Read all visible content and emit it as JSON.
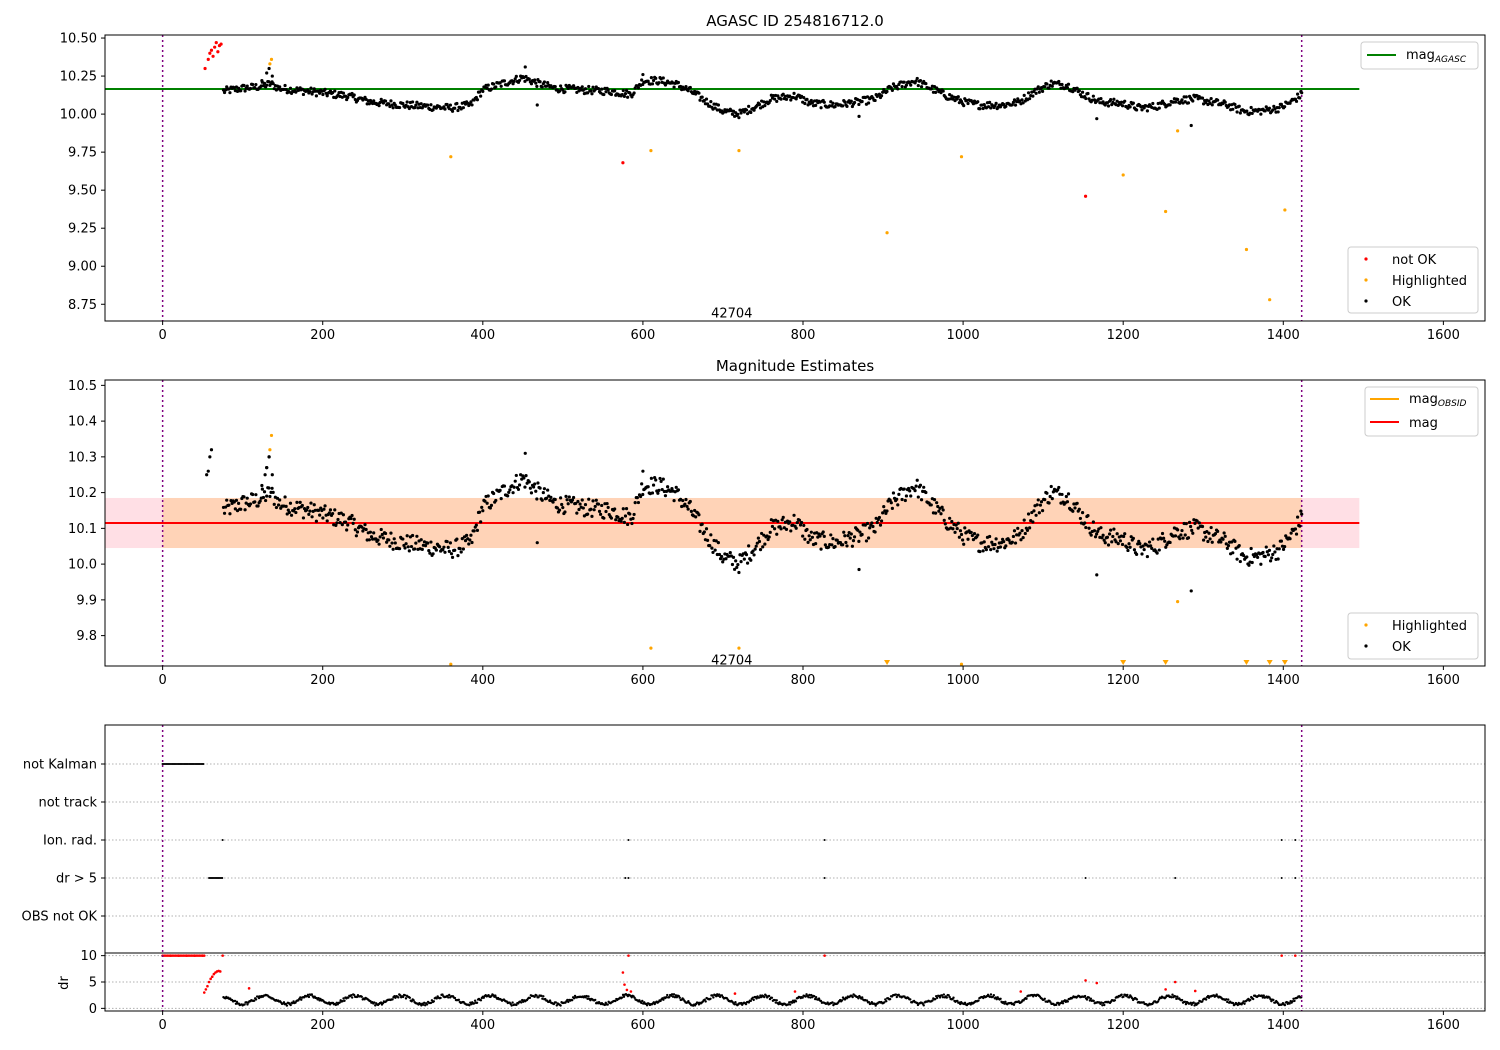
{
  "chart_data": [
    {
      "type": "scatter",
      "title": "AGASC ID 254816712.0",
      "xlabel": "",
      "ylabel": "",
      "xlim": [
        -72,
        1652
      ],
      "ylim": [
        8.64,
        10.52
      ],
      "xticks": [
        "0",
        "200",
        "400",
        "600",
        "800",
        "1000",
        "1200",
        "1400",
        "1600"
      ],
      "xtick_values": [
        0,
        200,
        400,
        600,
        800,
        1000,
        1200,
        1400,
        1600
      ],
      "yticks": [
        "8.75",
        "9.00",
        "9.25",
        "9.50",
        "9.75",
        "10.00",
        "10.25",
        "10.50"
      ],
      "ytick_values": [
        8.75,
        9.0,
        9.25,
        9.5,
        9.75,
        10.0,
        10.25,
        10.5
      ],
      "reference_line": {
        "name": "mag$_{AGASC}$",
        "label_main": "mag",
        "label_sub": "AGASC",
        "value": 10.165,
        "x_range": [
          -72,
          1495
        ],
        "color": "#008000"
      },
      "vlines": [
        0,
        1423
      ],
      "vline_color": "#800080",
      "obsid_label": {
        "text": "42704",
        "x": 711,
        "y": 8.69
      },
      "series": [
        {
          "name": "not OK",
          "color": "#ff0000",
          "points": [
            [
              53,
              10.3
            ],
            [
              57,
              10.36
            ],
            [
              59,
              10.4
            ],
            [
              61,
              10.42
            ],
            [
              63,
              10.38
            ],
            [
              65,
              10.44
            ],
            [
              67,
              10.47
            ],
            [
              69,
              10.41
            ],
            [
              71,
              10.45
            ],
            [
              73,
              10.46
            ],
            [
              575,
              9.68
            ],
            [
              1153,
              9.46
            ]
          ]
        },
        {
          "name": "Highlighted",
          "color": "#ffa500",
          "points": [
            [
              134,
              10.33
            ],
            [
              136,
              10.36
            ],
            [
              360,
              9.72
            ],
            [
              610,
              9.76
            ],
            [
              720,
              9.76
            ],
            [
              905,
              9.22
            ],
            [
              998,
              9.72
            ],
            [
              1200,
              9.6
            ],
            [
              1253,
              9.36
            ],
            [
              1268,
              9.89
            ],
            [
              1354,
              9.11
            ],
            [
              1383,
              8.78
            ],
            [
              1402,
              9.37
            ]
          ]
        },
        {
          "name": "OK",
          "color": "#000000",
          "trend": "mag_trend"
        }
      ],
      "legend": [
        "not OK",
        "Highlighted",
        "OK"
      ],
      "legend_position": "lower-right",
      "line_legend_position": "upper-right"
    },
    {
      "type": "scatter",
      "title": "Magnitude Estimates",
      "xlim": [
        -72,
        1652
      ],
      "ylim": [
        9.715,
        10.515
      ],
      "xticks": [
        "0",
        "200",
        "400",
        "600",
        "800",
        "1000",
        "1200",
        "1400",
        "1600"
      ],
      "xtick_values": [
        0,
        200,
        400,
        600,
        800,
        1000,
        1200,
        1400,
        1600
      ],
      "yticks": [
        "9.8",
        "9.9",
        "10.0",
        "10.1",
        "10.2",
        "10.3",
        "10.4",
        "10.5"
      ],
      "ytick_values": [
        9.8,
        9.9,
        10.0,
        10.1,
        10.2,
        10.3,
        10.4,
        10.5
      ],
      "mag_line": {
        "name": "mag",
        "value": 10.115,
        "band": [
          10.045,
          10.185
        ],
        "x_range": [
          -72,
          1495
        ],
        "color": "#ff0000",
        "band_color": "#ffc0cb"
      },
      "obsid_line": {
        "name": "mag$_{OBSID}$",
        "label_main": "mag",
        "label_sub": "OBSID",
        "value": 10.115,
        "band": [
          10.045,
          10.185
        ],
        "x_range": [
          0,
          1423
        ],
        "color": "#ffa500"
      },
      "vlines": [
        0,
        1423
      ],
      "obsid_label": {
        "text": "42704",
        "x": 711,
        "y": 9.73
      },
      "highlighted_points": [
        [
          134,
          10.32
        ],
        [
          136,
          10.36
        ],
        [
          360,
          9.72
        ],
        [
          610,
          9.765
        ],
        [
          720,
          9.765
        ],
        [
          998,
          9.72
        ],
        [
          1268,
          9.895
        ]
      ],
      "clipped_down_markers": [
        905,
        1200,
        1253,
        1354,
        1383,
        1402
      ],
      "legend": [
        "Highlighted",
        "OK"
      ],
      "line_legend": [
        "mag$_{OBSID}$",
        "mag"
      ]
    },
    {
      "type": "flags",
      "xlim": [
        -72,
        1652
      ],
      "xticks": [
        "0",
        "200",
        "400",
        "600",
        "800",
        "1000",
        "1200",
        "1400",
        "1600"
      ],
      "xtick_values": [
        0,
        200,
        400,
        600,
        800,
        1000,
        1200,
        1400,
        1600
      ],
      "rows": [
        {
          "label": "not Kalman",
          "intervals": [
            [
              0,
              52
            ]
          ],
          "points": []
        },
        {
          "label": "not track",
          "intervals": [],
          "points": []
        },
        {
          "label": "Ion. rad.",
          "intervals": [],
          "points": [
            75,
            582,
            827,
            1398,
            1415
          ]
        },
        {
          "label": "dr > 5",
          "intervals": [
            [
              58,
              75
            ]
          ],
          "points": [
            578,
            582,
            827,
            1153,
            1265,
            1398,
            1415
          ]
        },
        {
          "label": "OBS not OK",
          "intervals": [],
          "points": []
        }
      ],
      "dr": {
        "ylabel": "dr",
        "yticks": [
          "0",
          "5",
          "10"
        ],
        "ytick_values": [
          0,
          5,
          10
        ],
        "ylim": [
          -0.5,
          10.5
        ],
        "flagged_points": [
          [
            10,
            10
          ],
          [
            20,
            10
          ],
          [
            30,
            10
          ],
          [
            40,
            10
          ],
          [
            50,
            10
          ],
          [
            52,
            3
          ],
          [
            54,
            3.6
          ],
          [
            56,
            4.2
          ],
          [
            58,
            5
          ],
          [
            60,
            5.6
          ],
          [
            62,
            6
          ],
          [
            64,
            6.5
          ],
          [
            66,
            6.8
          ],
          [
            68,
            7
          ],
          [
            70,
            7.1
          ],
          [
            72,
            7
          ],
          [
            75,
            10
          ],
          [
            108,
            3.8
          ],
          [
            575,
            6.8
          ],
          [
            577,
            4.5
          ],
          [
            580,
            3.5
          ],
          [
            582,
            10
          ],
          [
            585,
            3.2
          ],
          [
            715,
            2.8
          ],
          [
            790,
            3.2
          ],
          [
            827,
            10
          ],
          [
            1072,
            3.2
          ],
          [
            1153,
            5.3
          ],
          [
            1167,
            4.8
          ],
          [
            1253,
            3.6
          ],
          [
            1265,
            5
          ],
          [
            1290,
            3.3
          ],
          [
            1398,
            10
          ],
          [
            1415,
            10
          ]
        ]
      }
    }
  ]
}
